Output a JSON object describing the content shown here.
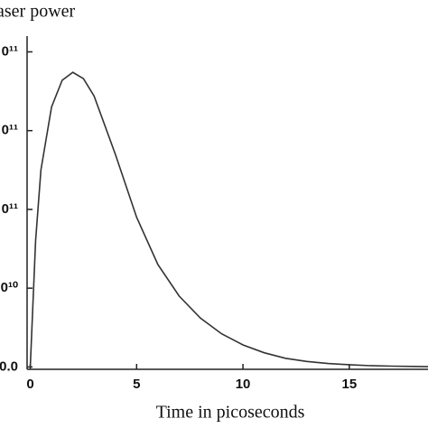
{
  "chart_data": {
    "type": "line",
    "title": "aser power",
    "x_label": "Time in picoseconds",
    "x": [
      0,
      0.25,
      0.5,
      1,
      1.5,
      2,
      2.5,
      3,
      4,
      5,
      6,
      7,
      8,
      9,
      10,
      11,
      12,
      13,
      14,
      15,
      16,
      17,
      18,
      18.7
    ],
    "series": [
      {
        "name": "Laser power",
        "color": "#333333",
        "values": [
          0,
          80000000000,
          125000000000,
          165000000000,
          182000000000,
          187000000000,
          183000000000,
          172000000000,
          135000000000,
          95000000000,
          65000000000,
          45000000000,
          31000000000,
          21000000000,
          14000000000,
          9000000000,
          5500000000,
          3500000000,
          2200000000,
          1400000000,
          800000000,
          500000000,
          300000000,
          200000000
        ]
      }
    ],
    "xlim": [
      -0.15,
      18.7
    ],
    "xticks": [
      0,
      5,
      10,
      15
    ],
    "ylim": [
      -1500000000,
      210000000000
    ],
    "yticks": [
      {
        "value": 0,
        "label": "0.0"
      },
      {
        "value": 50000000000,
        "label": "0¹⁰"
      },
      {
        "value": 100000000000,
        "label": "0¹¹"
      },
      {
        "value": 150000000000,
        "label": "0¹¹"
      },
      {
        "value": 200000000000,
        "label": "0¹¹"
      }
    ]
  }
}
